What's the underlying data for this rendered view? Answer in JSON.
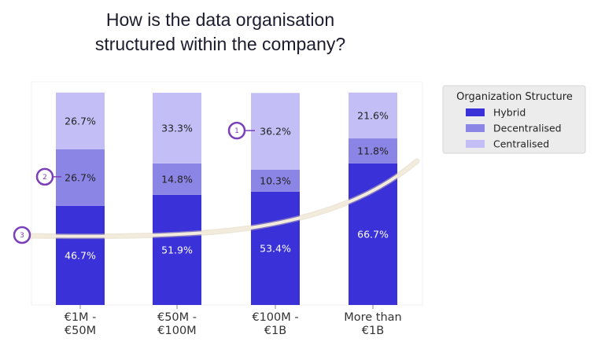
{
  "chart_data": {
    "type": "bar",
    "stacked": true,
    "title_lines": [
      "How is the data organisation",
      "structured within the company?"
    ],
    "categories": [
      [
        "€1M -",
        "€50M"
      ],
      [
        "€50M -",
        "€100M"
      ],
      [
        "€100M -",
        "€1B"
      ],
      [
        "More than",
        "€1B"
      ]
    ],
    "series": [
      {
        "name": "Hybrid",
        "values": [
          46.7,
          51.9,
          53.4,
          66.7
        ],
        "labels": [
          "46.7%",
          "51.9%",
          "53.4%",
          "66.7%"
        ],
        "color": "#3a31d8",
        "text_color": "#ffffff"
      },
      {
        "name": "Decentralised",
        "values": [
          26.7,
          14.8,
          10.3,
          11.8
        ],
        "labels": [
          "26.7%",
          "14.8%",
          "10.3%",
          "11.8%"
        ],
        "color": "#8b85e6",
        "text_color": "#222222"
      },
      {
        "name": "Centralised",
        "values": [
          26.7,
          33.3,
          36.2,
          21.6
        ],
        "labels": [
          "26.7%",
          "33.3%",
          "36.2%",
          "21.6%"
        ],
        "color": "#c3bff6",
        "text_color": "#222222"
      }
    ],
    "ylim": [
      0,
      100
    ],
    "legend": {
      "title": "Organization Structure",
      "position": "right"
    },
    "annotations": [
      {
        "number": "1",
        "series": "Centralised",
        "category_index": 2
      },
      {
        "number": "2",
        "series": "Decentralised",
        "category_index": 0
      },
      {
        "number": "3",
        "target": "trend-line"
      }
    ],
    "trend_line_color": "#f3ebdc",
    "marker_color": "#7b3fb8"
  }
}
